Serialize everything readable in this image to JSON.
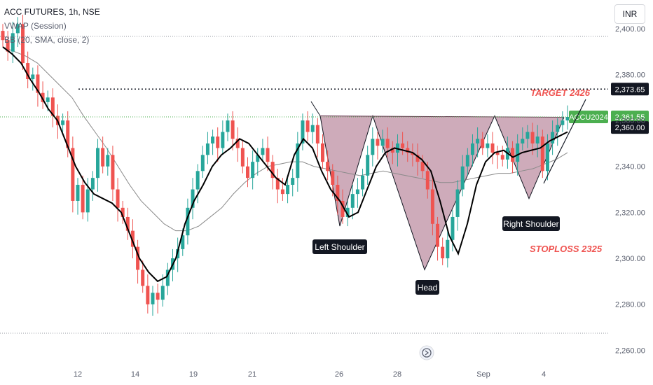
{
  "header": {
    "symbol": "ACC FUTURES, 1h, NSE",
    "indicator_vwap": "VWAP (Session)",
    "indicator_bb": "BB (20, SMA, close, 2)",
    "currency_button": "INR"
  },
  "annotations": {
    "target": "TARGET 2426",
    "stoploss": "STOPLOSS 2325",
    "left_shoulder": "Left Shoulder",
    "head": "Head",
    "right_shoulder": "Right Shoulder"
  },
  "price_labels": {
    "resistance": "2,373.65",
    "symbol_tag": "ACCU2024",
    "last": "2,361.55",
    "level": "2,360.00"
  },
  "colors": {
    "up": "#26a69a",
    "down": "#ef5350",
    "pattern_fill": "#b07890",
    "vwap": "#000000",
    "bb_basis": "#8a8a8a",
    "last_price": "#4caf50"
  },
  "chart_data": {
    "type": "candlestick",
    "title": "ACC FUTURES, 1h, NSE",
    "y_ticks": [
      2260,
      2280,
      2300,
      2320,
      2340,
      2360,
      2380,
      2400
    ],
    "y_tick_labels": [
      "2,260.00",
      "2,280.00",
      "2,300.00",
      "2,320.00",
      "2,340.00",
      "2,360.00",
      "2,380.00",
      "2,400.00"
    ],
    "ylim": [
      2254,
      2410
    ],
    "x_labels": [
      "12",
      "14",
      "19",
      "21",
      "26",
      "28",
      "Sep",
      "4"
    ],
    "horizontal_levels": {
      "resistance": 2373.65,
      "last_price": 2361.55,
      "level": 2360.0
    },
    "pattern": {
      "type": "inverse head and shoulders",
      "left_shoulder_low": 2314,
      "head_low": 2295,
      "right_shoulder_low": 2326,
      "neckline": 2362,
      "target": 2426,
      "stoploss": 2325
    },
    "candles_close": [
      2395,
      2390,
      2398,
      2402,
      2385,
      2378,
      2380,
      2372,
      2368,
      2370,
      2362,
      2358,
      2360,
      2348,
      2325,
      2332,
      2320,
      2330,
      2335,
      2348,
      2340,
      2345,
      2330,
      2322,
      2318,
      2312,
      2305,
      2295,
      2288,
      2280,
      2285,
      2282,
      2288,
      2295,
      2300,
      2304,
      2310,
      2322,
      2330,
      2338,
      2345,
      2350,
      2353,
      2348,
      2355,
      2360,
      2352,
      2348,
      2340,
      2335,
      2342,
      2345,
      2348,
      2342,
      2335,
      2330,
      2328,
      2332,
      2335,
      2350,
      2360,
      2355,
      2358,
      2350,
      2342,
      2338,
      2332,
      2325,
      2318,
      2322,
      2328,
      2330,
      2336,
      2345,
      2352,
      2349,
      2352,
      2348,
      2346,
      2350,
      2348,
      2346,
      2345,
      2342,
      2338,
      2330,
      2315,
      2305,
      2300,
      2308,
      2318,
      2330,
      2340,
      2345,
      2350,
      2352,
      2348,
      2350,
      2346,
      2345,
      2343,
      2348,
      2342,
      2350,
      2352,
      2355,
      2350,
      2353,
      2338,
      2350,
      2355,
      2358,
      2360,
      2361.55
    ],
    "vwap": [
      2392,
      2389,
      2385,
      2378,
      2372,
      2365,
      2360,
      2350,
      2340,
      2333,
      2328,
      2326,
      2324,
      2320,
      2310,
      2300,
      2294,
      2290,
      2292,
      2300,
      2315,
      2325,
      2332,
      2340,
      2345,
      2348,
      2352,
      2350,
      2345,
      2340,
      2335,
      2332,
      2345,
      2352,
      2348,
      2338,
      2330,
      2325,
      2318,
      2320,
      2330,
      2340,
      2346,
      2348,
      2347,
      2346,
      2343,
      2338,
      2325,
      2310,
      2302,
      2315,
      2332,
      2342,
      2346,
      2347,
      2344,
      2346,
      2347,
      2348,
      2351,
      2353,
      2355
    ],
    "bb_basis": [
      2392,
      2390,
      2388,
      2385,
      2380,
      2375,
      2370,
      2362,
      2355,
      2348,
      2340,
      2332,
      2325,
      2320,
      2315,
      2312,
      2312,
      2314,
      2318,
      2322,
      2328,
      2333,
      2337,
      2340,
      2341,
      2342,
      2342,
      2340,
      2339,
      2338,
      2337,
      2336,
      2337,
      2338,
      2337,
      2336,
      2335,
      2334,
      2333,
      2333,
      2334,
      2335,
      2336,
      2337,
      2337,
      2338,
      2339,
      2341,
      2343,
      2346
    ]
  }
}
